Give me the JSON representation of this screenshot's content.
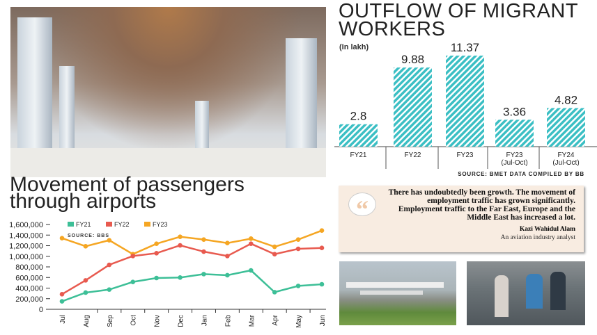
{
  "bar_chart": {
    "title": "OUTFLOW OF MIGRANT WORKERS",
    "unit": "(In lakh)",
    "source": "SOURCE: BMET DATA COMPILED BY BB",
    "color": "#3bbfc4",
    "chart_data": {
      "type": "bar",
      "categories": [
        [
          "FY21"
        ],
        [
          "FY22"
        ],
        [
          "FY23"
        ],
        [
          "FY23",
          "(Jul-Oct)"
        ],
        [
          "FY24",
          "(Jul-Oct)"
        ]
      ],
      "values": [
        2.8,
        9.88,
        11.37,
        3.36,
        4.82
      ],
      "labels": [
        "2.8",
        "9.88",
        "11.37",
        "3.36",
        "4.82"
      ],
      "ylim": [
        0,
        11.37
      ]
    }
  },
  "line_chart": {
    "title_line1": "Movement of passengers",
    "title_line2": "through airports",
    "source_prefix": "SOURCE:",
    "source": "BBS",
    "chart_data": {
      "type": "line",
      "categories": [
        "Jul",
        "Aug",
        "Sep",
        "Oct",
        "Nov",
        "Dec",
        "Jan",
        "Feb",
        "Mar",
        "Apr",
        "May",
        "Jun"
      ],
      "ylim": [
        0,
        1600000
      ],
      "yticks": [
        "0",
        "200,000",
        "400,000",
        "600,000",
        "800,000",
        "1,000,000",
        "1,200,000",
        "1,400,000",
        "1,600,000"
      ],
      "legend_position": "top",
      "series": [
        {
          "name": "FY21",
          "color": "#3dbf97",
          "values": [
            150000,
            315000,
            372000,
            516000,
            590000,
            599000,
            664000,
            643000,
            734000,
            323000,
            441000,
            472000
          ]
        },
        {
          "name": "FY22",
          "color": "#e85a4f",
          "values": [
            284000,
            546000,
            839000,
            1005000,
            1058000,
            1206000,
            1088000,
            1005000,
            1237000,
            1040000,
            1141000,
            1158000
          ]
        },
        {
          "name": "FY23",
          "color": "#f5a623",
          "values": [
            1342000,
            1189000,
            1303000,
            1040000,
            1237000,
            1368000,
            1316000,
            1250000,
            1333000,
            1180000,
            1316000,
            1486000
          ]
        }
      ]
    }
  },
  "quote": {
    "text": "There has undoubtedly been growth. The movement of employment traffic has grown significantly. Employment traffic to the Far East, Europe and the Middle East has increased a lot.",
    "name": "Kazi Wahidul Alam",
    "role": "An aviation industry analyst",
    "icon": "quote-mark-icon"
  }
}
